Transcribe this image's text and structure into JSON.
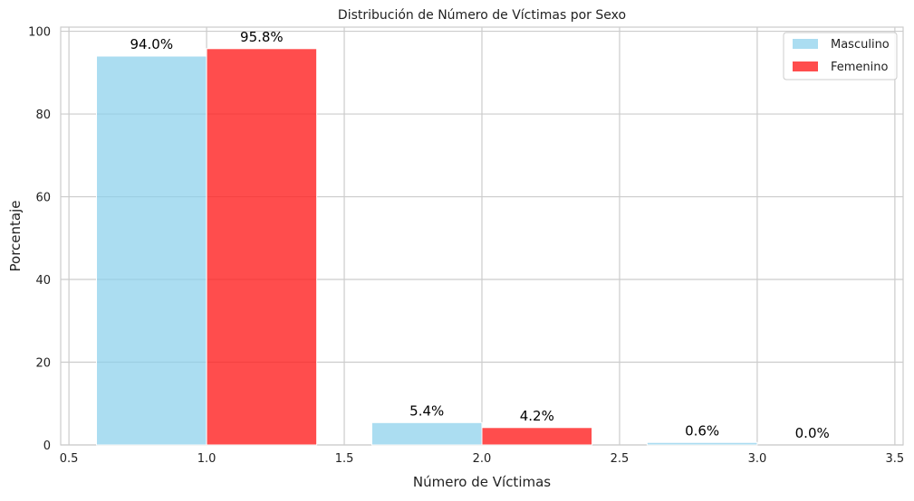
{
  "chart_data": {
    "type": "bar",
    "title": "Distribución de Número de Víctimas por Sexo",
    "xlabel": "Número de Víctimas",
    "ylabel": "Porcentaje",
    "xlim": [
      0.47,
      3.53
    ],
    "ylim": [
      0,
      101
    ],
    "xticks": [
      "0.5",
      "1.0",
      "1.5",
      "2.0",
      "2.5",
      "3.0",
      "3.5"
    ],
    "yticks": [
      "0",
      "20",
      "40",
      "60",
      "80",
      "100"
    ],
    "grid": true,
    "legend_position": "top-right",
    "series": [
      {
        "name": "Masculino",
        "color": "#87CEEB",
        "x": [
          0.8,
          1.8,
          2.8
        ],
        "values": [
          94.0,
          5.4,
          0.6
        ],
        "labels": [
          "94.0%",
          "5.4%",
          "0.6%"
        ]
      },
      {
        "name": "Femenino",
        "color": "#FF2020",
        "x": [
          1.2,
          2.2,
          3.2
        ],
        "values": [
          95.8,
          4.2,
          0.0
        ],
        "labels": [
          "95.8%",
          "4.2%",
          "0.0%"
        ]
      }
    ]
  }
}
